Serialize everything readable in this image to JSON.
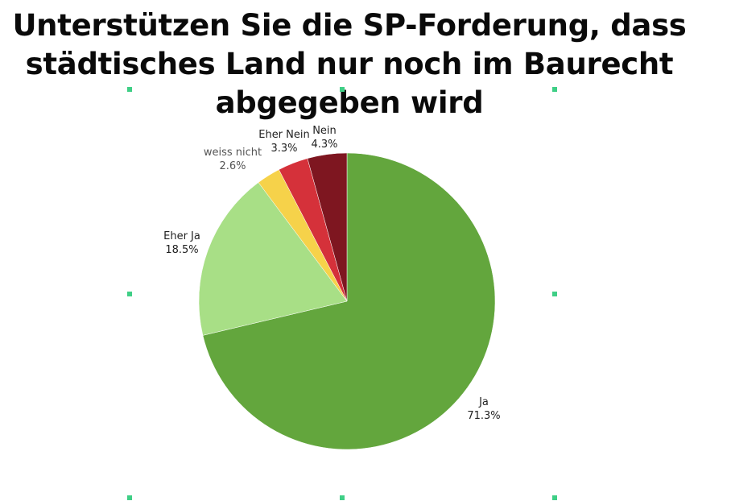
{
  "title_lines": [
    "Unterstützen Sie die SP-Forderung, dass",
    "städtisches Land nur noch im Baurecht",
    "abgegeben wird"
  ],
  "chart_data": {
    "type": "pie",
    "title": "Unterstützen Sie die SP-Forderung, dass städtisches Land nur noch im Baurecht abgegeben wird",
    "unit": "%",
    "slices": [
      {
        "label": "Ja",
        "value": 71.3,
        "display": "71.3%",
        "color": "#63a63d"
      },
      {
        "label": "Eher Ja",
        "value": 18.5,
        "display": "18.5%",
        "color": "#a8df86"
      },
      {
        "label": "weiss nicht",
        "value": 2.6,
        "display": "2.6%",
        "color": "#f6d24a"
      },
      {
        "label": "Eher Nein",
        "value": 3.3,
        "display": "3.3%",
        "color": "#d5313a"
      },
      {
        "label": "Nein",
        "value": 4.3,
        "display": "4.3%",
        "color": "#7e1620"
      }
    ]
  }
}
